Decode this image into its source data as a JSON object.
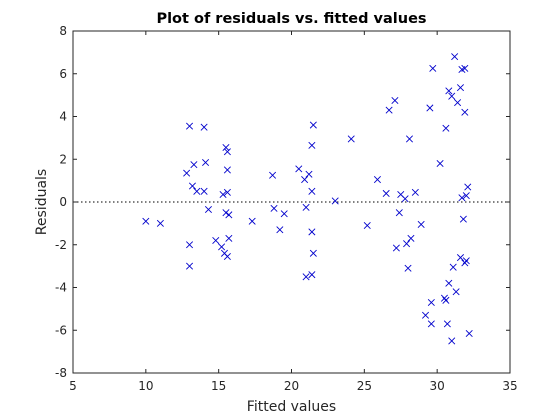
{
  "chart_data": {
    "type": "scatter",
    "title": "Plot of residuals vs. fitted values",
    "xlabel": "Fitted values",
    "ylabel": "Residuals",
    "xlim": [
      5,
      35
    ],
    "ylim": [
      -8,
      8
    ],
    "x_ticks": [
      "5",
      "10",
      "15",
      "20",
      "25",
      "30",
      "35"
    ],
    "y_ticks": [
      "8",
      "6",
      "4",
      "2",
      "0",
      "-2",
      "-4",
      "-6",
      "-8"
    ],
    "reference_line": {
      "y": 0,
      "style": "dotted"
    },
    "marker": "x",
    "marker_color": "#0000cc",
    "grid": false,
    "series": [
      {
        "points": [
          [
            10.0,
            -0.9
          ],
          [
            11.0,
            -1.0
          ],
          [
            12.8,
            1.35
          ],
          [
            13.0,
            3.55
          ],
          [
            13.0,
            -2.0
          ],
          [
            13.0,
            -3.0
          ],
          [
            13.2,
            0.75
          ],
          [
            13.3,
            1.75
          ],
          [
            13.5,
            0.5
          ],
          [
            14.0,
            0.5
          ],
          [
            14.0,
            3.5
          ],
          [
            14.1,
            1.85
          ],
          [
            14.3,
            -0.35
          ],
          [
            14.8,
            -1.8
          ],
          [
            15.2,
            -2.1
          ],
          [
            15.3,
            0.35
          ],
          [
            15.4,
            -2.4
          ],
          [
            15.5,
            -0.5
          ],
          [
            15.5,
            2.55
          ],
          [
            15.6,
            1.5
          ],
          [
            15.6,
            -2.55
          ],
          [
            15.6,
            2.35
          ],
          [
            15.6,
            0.45
          ],
          [
            15.7,
            -0.6
          ],
          [
            15.7,
            -1.7
          ],
          [
            17.3,
            -0.9
          ],
          [
            18.7,
            1.25
          ],
          [
            18.8,
            -0.3
          ],
          [
            19.2,
            -1.3
          ],
          [
            19.5,
            -0.55
          ],
          [
            20.5,
            1.55
          ],
          [
            20.9,
            1.05
          ],
          [
            21.0,
            -0.25
          ],
          [
            21.0,
            -3.5
          ],
          [
            21.2,
            1.3
          ],
          [
            21.4,
            -1.4
          ],
          [
            21.4,
            2.65
          ],
          [
            21.4,
            0.5
          ],
          [
            21.4,
            -3.4
          ],
          [
            21.5,
            3.6
          ],
          [
            21.5,
            -2.4
          ],
          [
            23.0,
            0.05
          ],
          [
            24.1,
            2.95
          ],
          [
            25.2,
            -1.1
          ],
          [
            25.9,
            1.05
          ],
          [
            26.5,
            0.4
          ],
          [
            26.7,
            4.3
          ],
          [
            27.1,
            4.75
          ],
          [
            27.2,
            -2.15
          ],
          [
            27.4,
            -0.5
          ],
          [
            27.5,
            0.35
          ],
          [
            27.8,
            0.15
          ],
          [
            27.9,
            -1.95
          ],
          [
            28.0,
            -3.1
          ],
          [
            28.1,
            2.95
          ],
          [
            28.2,
            -1.7
          ],
          [
            28.5,
            0.45
          ],
          [
            28.9,
            -1.05
          ],
          [
            29.2,
            -5.3
          ],
          [
            29.5,
            4.4
          ],
          [
            29.6,
            -4.7
          ],
          [
            29.6,
            -5.7
          ],
          [
            29.7,
            6.25
          ],
          [
            30.2,
            1.8
          ],
          [
            30.5,
            -4.5
          ],
          [
            30.6,
            3.45
          ],
          [
            30.6,
            -4.6
          ],
          [
            30.7,
            -5.7
          ],
          [
            30.8,
            5.2
          ],
          [
            30.8,
            -3.8
          ],
          [
            31.0,
            4.95
          ],
          [
            31.0,
            -6.5
          ],
          [
            31.1,
            -3.05
          ],
          [
            31.2,
            6.8
          ],
          [
            31.3,
            -4.2
          ],
          [
            31.4,
            4.65
          ],
          [
            31.6,
            5.35
          ],
          [
            31.6,
            -2.6
          ],
          [
            31.7,
            0.2
          ],
          [
            31.7,
            6.2
          ],
          [
            31.8,
            -0.8
          ],
          [
            31.9,
            6.25
          ],
          [
            31.9,
            -2.85
          ],
          [
            31.9,
            4.2
          ],
          [
            32.0,
            -2.75
          ],
          [
            32.0,
            0.3
          ],
          [
            32.1,
            0.7
          ],
          [
            32.2,
            -6.15
          ]
        ]
      }
    ]
  }
}
